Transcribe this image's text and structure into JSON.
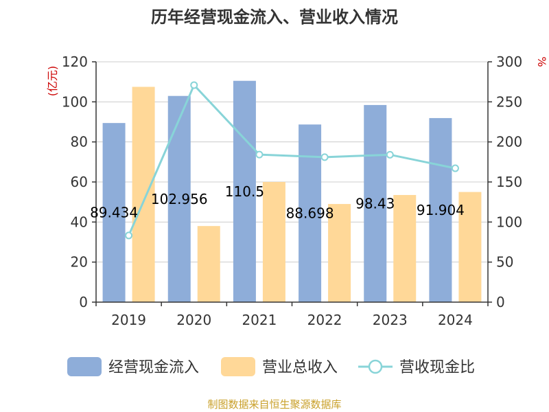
{
  "chart_data": {
    "type": "bar",
    "title": "历年经营现金流入、营业收入情况",
    "categories": [
      "2019",
      "2020",
      "2021",
      "2022",
      "2023",
      "2024"
    ],
    "y_left": {
      "unit": "(亿元)",
      "range": [
        0,
        120
      ],
      "ticks": [
        0,
        20,
        40,
        60,
        80,
        100,
        120
      ]
    },
    "y_right": {
      "unit": "%",
      "range": [
        0,
        300
      ],
      "ticks": [
        0,
        50,
        100,
        150,
        200,
        250,
        300
      ]
    },
    "series": [
      {
        "name": "经营现金流入",
        "type": "bar",
        "axis": "left",
        "color": "#8eadd9",
        "values": [
          89.434,
          102.956,
          110.5,
          88.698,
          98.43,
          91.904
        ],
        "labels": [
          "89.434",
          "102.956",
          "110.5",
          "88.698",
          "98.43",
          "91.904"
        ]
      },
      {
        "name": "营业总收入",
        "type": "bar",
        "axis": "left",
        "color": "#ffd898",
        "values": [
          107.5,
          38.0,
          60.0,
          49.0,
          53.5,
          55.0
        ]
      },
      {
        "name": "营收现金比",
        "type": "line",
        "axis": "right",
        "color": "#88d4d8",
        "values": [
          83.2,
          270.9,
          184.2,
          181.0,
          184.0,
          167.1
        ]
      }
    ],
    "grid": true,
    "legend_position": "bottom",
    "source": "制图数据来自恒生聚源数据库"
  }
}
